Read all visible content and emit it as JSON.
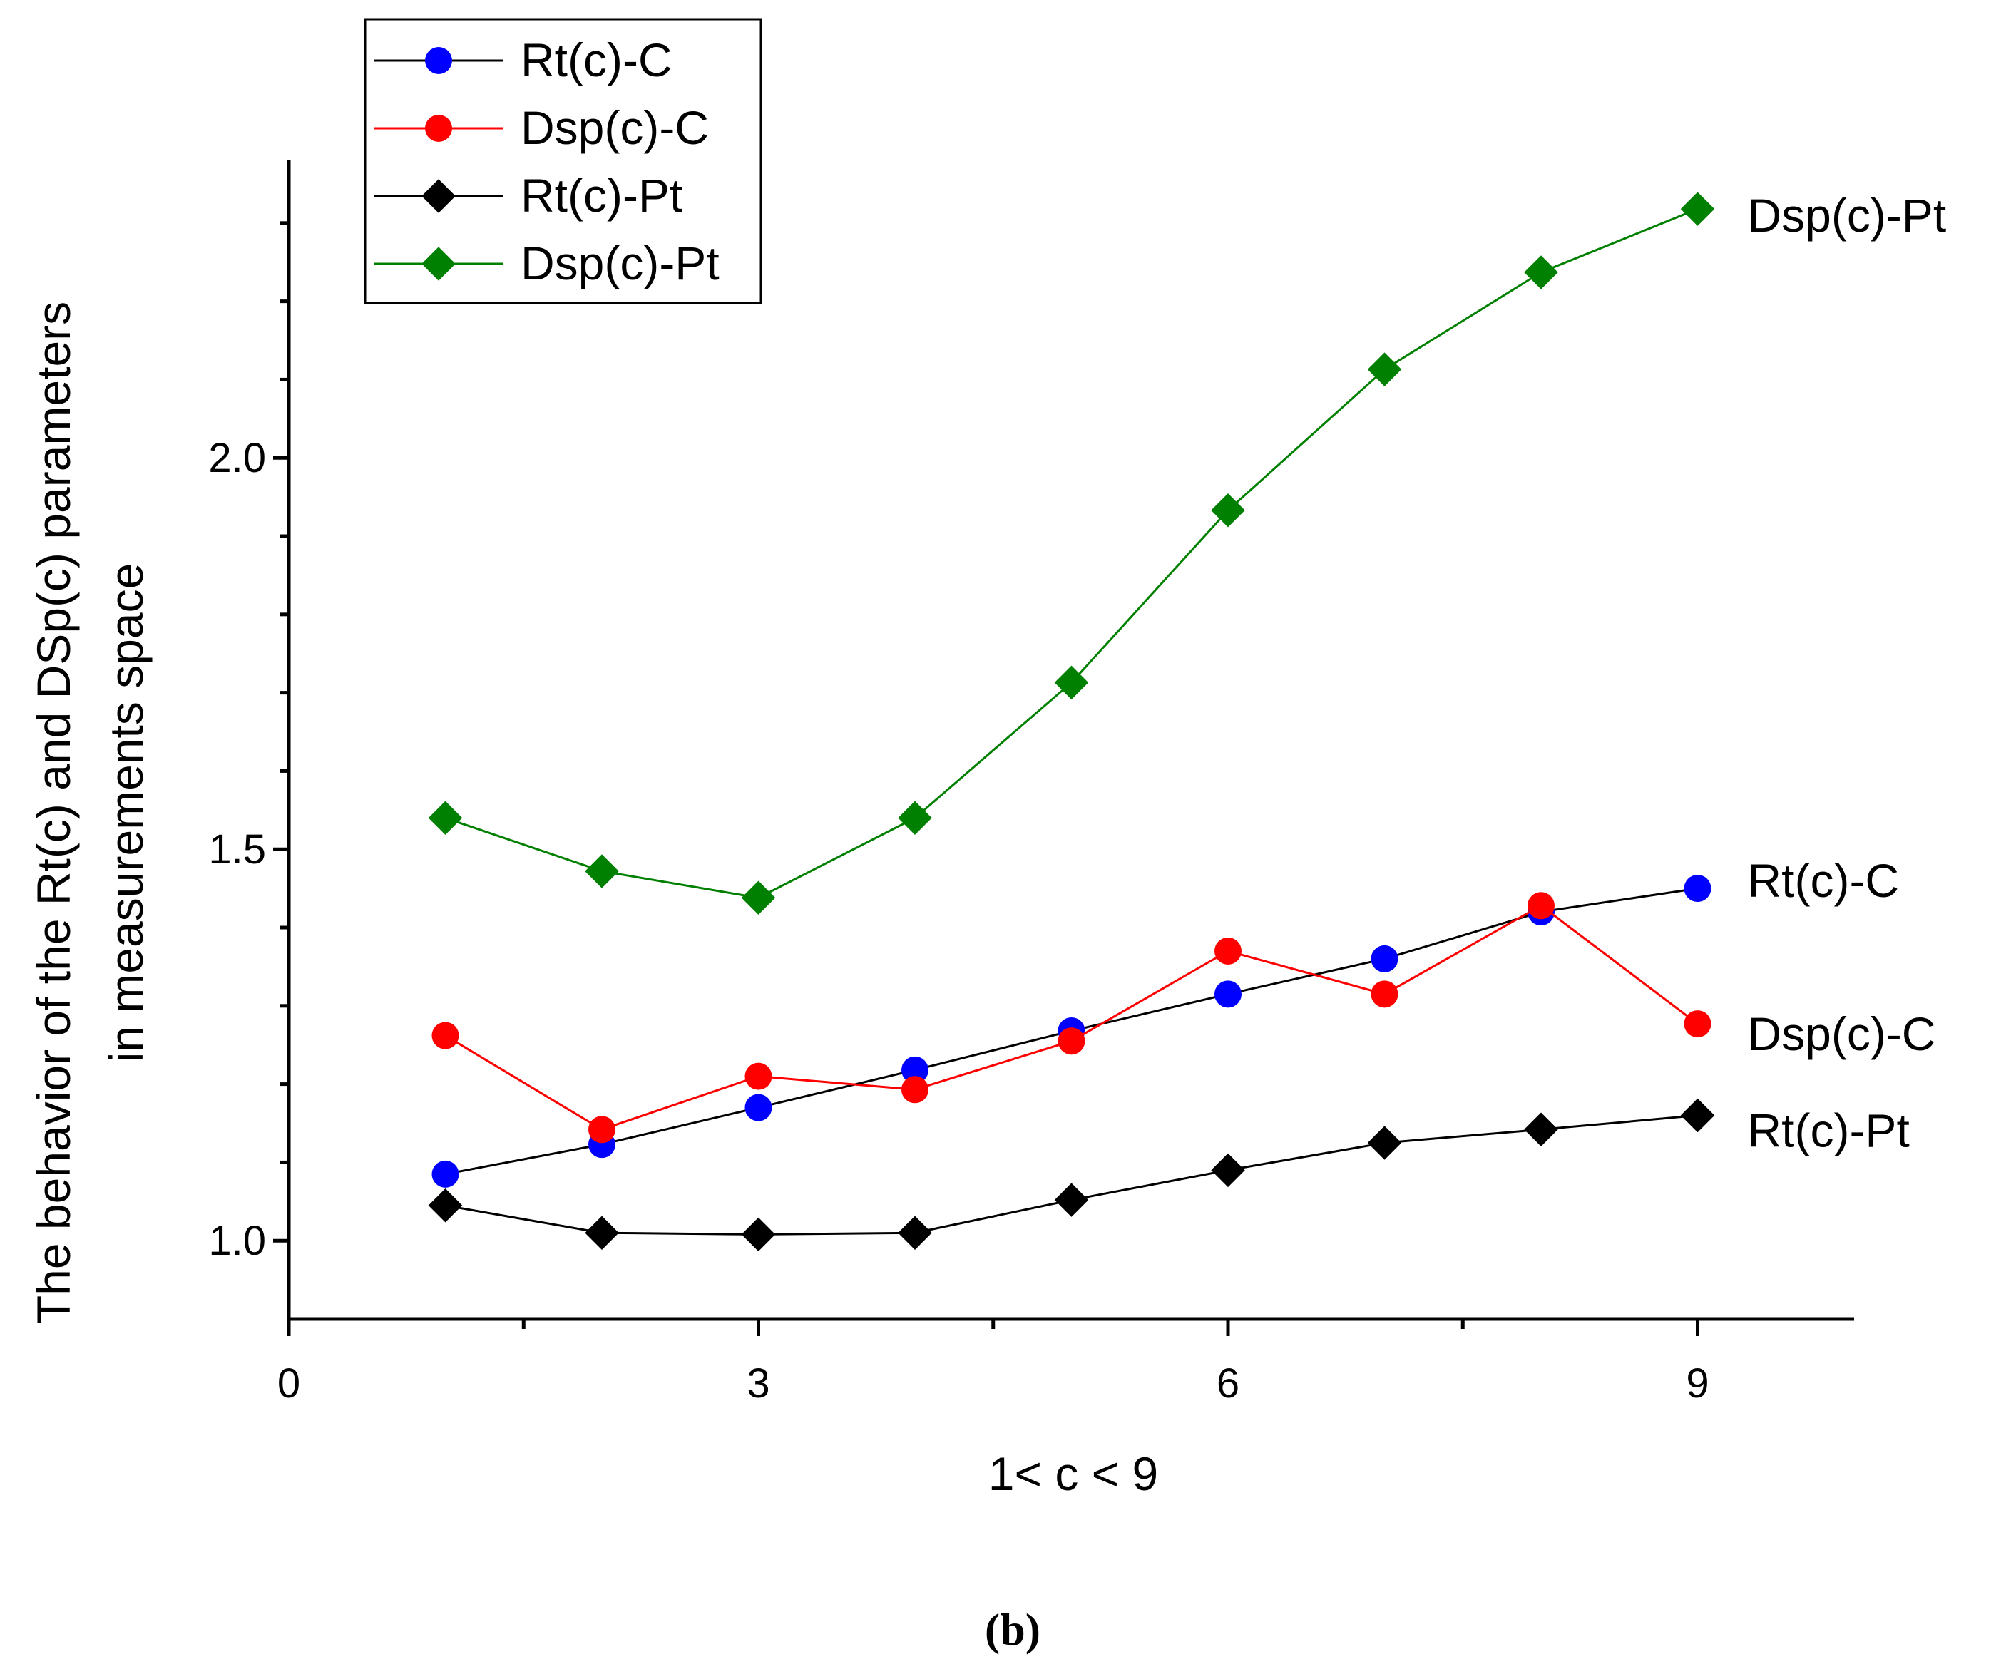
{
  "chart_data": {
    "type": "line",
    "title": "",
    "xlabel": "1< c < 9",
    "ylabel_lines": [
      "The behavior of the Rt(c) and DSp(c) parameters",
      "in measurements space"
    ],
    "xlim": [
      0,
      10
    ],
    "ylim": [
      0.9,
      2.38
    ],
    "xticks": [
      0,
      3,
      6,
      9
    ],
    "xtick_labels": [
      "0",
      "3",
      "6",
      "9"
    ],
    "x_minor_ticks": [
      1.5,
      4.5,
      7.5
    ],
    "yticks": [
      1.0,
      1.5,
      2.0
    ],
    "ytick_labels": [
      "1.0",
      "1.5",
      "2.0"
    ],
    "x": [
      1,
      2,
      3,
      4,
      5,
      6,
      7,
      8,
      9
    ],
    "series": [
      {
        "name": "Rt(c)-C",
        "marker": "circle",
        "marker_color": "#0000ff",
        "line_color": "#000000",
        "values": [
          1.085,
          1.123,
          1.17,
          1.218,
          1.268,
          1.315,
          1.36,
          1.42,
          1.45
        ]
      },
      {
        "name": "Dsp(c)-C",
        "marker": "circle",
        "marker_color": "#ff0000",
        "line_color": "#ff0000",
        "values": [
          1.262,
          1.142,
          1.21,
          1.193,
          1.255,
          1.37,
          1.315,
          1.428,
          1.277
        ]
      },
      {
        "name": "Rt(c)-Pt",
        "marker": "diamond",
        "marker_color": "#000000",
        "line_color": "#000000",
        "values": [
          1.045,
          1.01,
          1.008,
          1.01,
          1.052,
          1.09,
          1.125,
          1.142,
          1.16
        ]
      },
      {
        "name": "Dsp(c)-Pt",
        "marker": "diamond",
        "marker_color": "#008000",
        "line_color": "#008000",
        "values": [
          1.54,
          1.472,
          1.438,
          1.54,
          1.713,
          1.933,
          2.113,
          2.237,
          2.318
        ]
      }
    ],
    "end_labels": [
      "Dsp(c)-Pt",
      "Rt(c)-C",
      "Dsp(c)-C",
      "Rt(c)-Pt"
    ],
    "legend": {
      "placement": "top-left",
      "entries": [
        "Rt(c)-C",
        "Dsp(c)-C",
        "Rt(c)-Pt",
        "Dsp(c)-Pt"
      ]
    },
    "caption": "(b)",
    "grid": false
  }
}
